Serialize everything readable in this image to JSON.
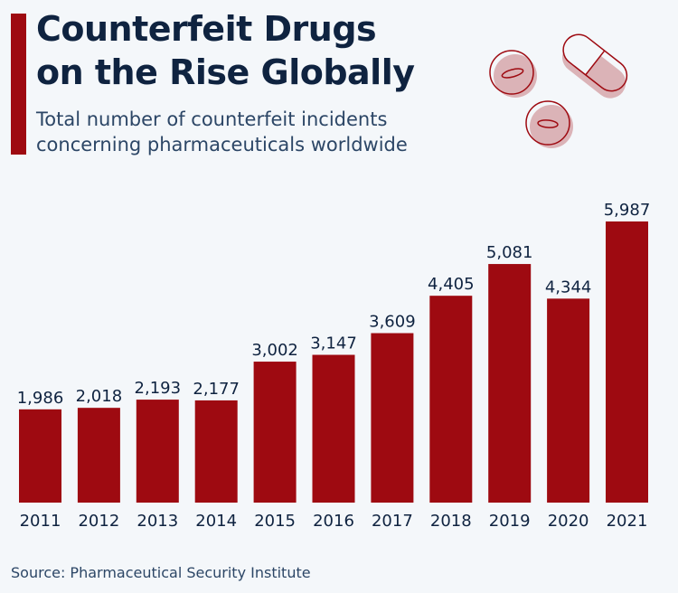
{
  "header": {
    "title_line1": "Counterfeit Drugs",
    "title_line2": "on the Rise Globally",
    "subtitle_line1": "Total number of counterfeit incidents",
    "subtitle_line2": "concerning pharmaceuticals worldwide"
  },
  "icon": "pills-icon",
  "colors": {
    "bar": "#9e0a11",
    "title": "#0f2340",
    "text": "#2c4666",
    "background": "#f4f7fa"
  },
  "footer": {
    "source": "Source: Pharmaceutical Security Institute"
  },
  "chart_data": {
    "type": "bar",
    "title": "Counterfeit Drugs on the Rise Globally",
    "subtitle": "Total number of counterfeit incidents concerning pharmaceuticals worldwide",
    "categories": [
      "2011",
      "2012",
      "2013",
      "2014",
      "2015",
      "2016",
      "2017",
      "2018",
      "2019",
      "2020",
      "2021"
    ],
    "values": [
      1986,
      2018,
      2193,
      2177,
      3002,
      3147,
      3609,
      4405,
      5081,
      4344,
      5987
    ],
    "labels": [
      "1,986",
      "2,018",
      "2,193",
      "2,177",
      "3,002",
      "3,147",
      "3,609",
      "4,405",
      "5,081",
      "4,344",
      "5,987"
    ],
    "xlabel": "",
    "ylabel": "",
    "ylim": [
      0,
      5987
    ],
    "grid": false,
    "legend": "none"
  }
}
